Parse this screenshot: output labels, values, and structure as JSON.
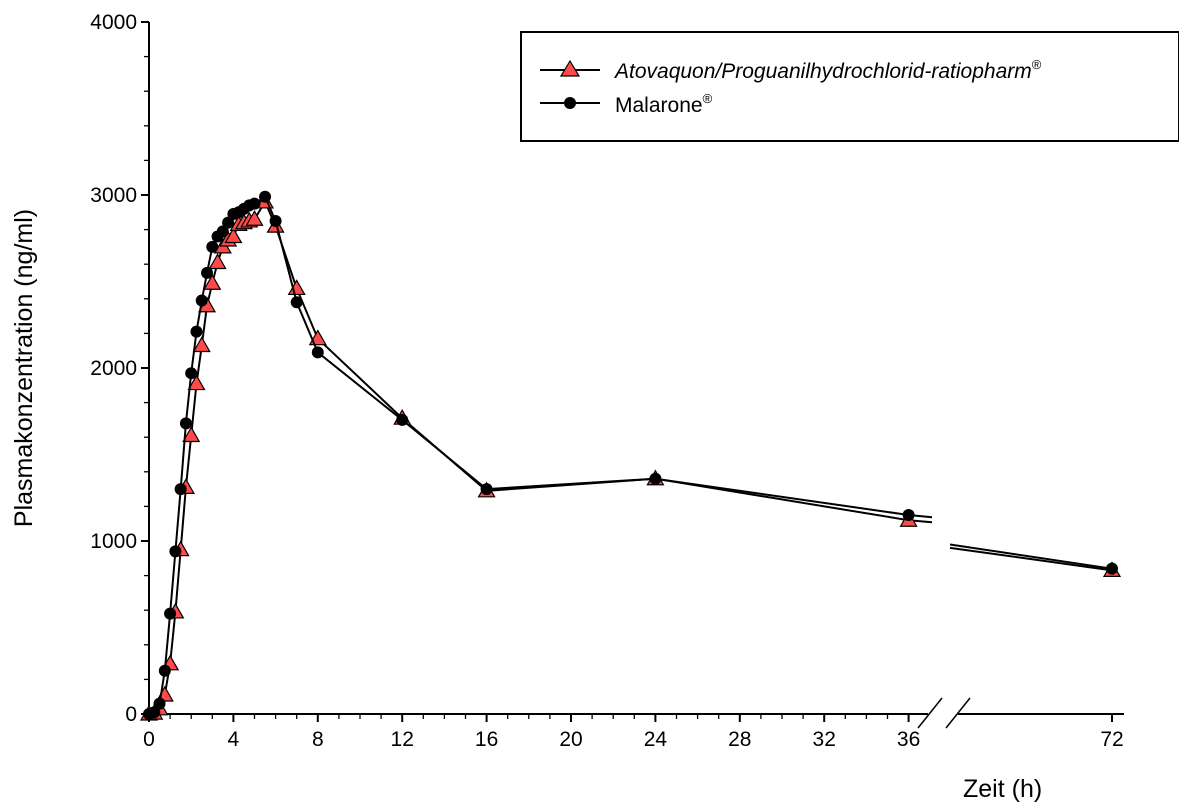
{
  "chart_data": {
    "type": "line",
    "xlabel": "Zeit (h)",
    "ylabel": "Plasmakonzentration (ng/ml)",
    "ylim": [
      0,
      4000
    ],
    "x_ticks": [
      "0",
      "4",
      "8",
      "12",
      "16",
      "20",
      "24",
      "28",
      "32",
      "36",
      "72"
    ],
    "y_ticks": [
      "0",
      "1000",
      "2000",
      "3000",
      "4000"
    ],
    "axis_break": "between 36 and 72 h",
    "grid": false,
    "legend": {
      "placement": "top-right",
      "entries": [
        {
          "text": "Atovaquon/Proguanilhydrochlorid-ratiopharm",
          "sup": "®",
          "italic": true
        },
        {
          "text": "Malarone",
          "sup": "®",
          "italic": false
        }
      ]
    },
    "series": [
      {
        "name": "Atovaquon/Proguanilhydrochlorid-ratiopharm®",
        "marker": "triangle",
        "marker_color": "#ff4a4a",
        "x": [
          0,
          0.25,
          0.5,
          0.75,
          1,
          1.25,
          1.5,
          1.75,
          2,
          2.25,
          2.5,
          2.75,
          3,
          3.25,
          3.5,
          3.75,
          4,
          4.25,
          4.5,
          4.75,
          5,
          5.5,
          6,
          7,
          8,
          12,
          16,
          24,
          36,
          72
        ],
        "y": [
          0,
          5,
          30,
          110,
          290,
          590,
          950,
          1310,
          1610,
          1910,
          2130,
          2360,
          2490,
          2610,
          2700,
          2740,
          2760,
          2830,
          2840,
          2850,
          2860,
          2960,
          2820,
          2460,
          2170,
          1710,
          1290,
          1360,
          1120,
          830
        ]
      },
      {
        "name": "Malarone®",
        "marker": "circle",
        "marker_color": "#000000",
        "x": [
          0,
          0.25,
          0.5,
          0.75,
          1,
          1.25,
          1.5,
          1.75,
          2,
          2.25,
          2.5,
          2.75,
          3,
          3.25,
          3.5,
          3.75,
          4,
          4.25,
          4.5,
          4.75,
          5,
          5.5,
          6,
          7,
          8,
          12,
          16,
          24,
          36,
          72
        ],
        "y": [
          0,
          10,
          60,
          250,
          580,
          940,
          1300,
          1680,
          1970,
          2210,
          2390,
          2550,
          2700,
          2760,
          2790,
          2840,
          2890,
          2900,
          2920,
          2940,
          2950,
          2990,
          2850,
          2380,
          2090,
          1700,
          1300,
          1360,
          1150,
          840
        ]
      }
    ]
  }
}
